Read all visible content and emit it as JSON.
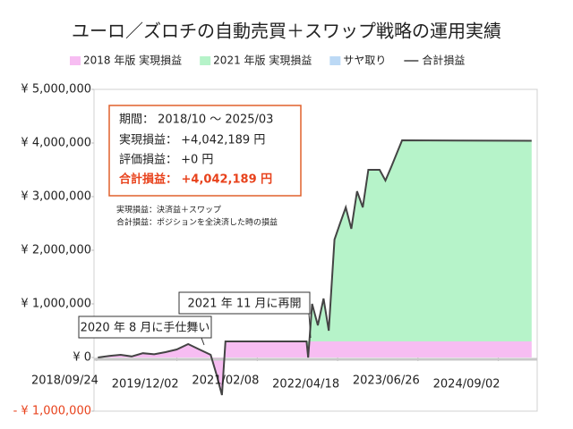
{
  "chart_data": {
    "type": "stacked_area",
    "title": "ユーロ／ズロチの自動売買＋スワップ戦略の運用実績",
    "x": [
      "2018/10/01",
      "2018/12/01",
      "2019/02/01",
      "2019/04/01",
      "2019/06/01",
      "2019/08/01",
      "2019/10/01",
      "2019/12/01",
      "2020/02/01",
      "2020/04/01",
      "2020/06/01",
      "2020/07/01",
      "2020/08/01",
      "2020/08/20",
      "2021/11/01",
      "2021/11/10",
      "2021/12/01",
      "2022/01/01",
      "2022/02/01",
      "2022/03/01",
      "2022/04/01",
      "2022/05/01",
      "2022/06/01",
      "2022/07/01",
      "2022/08/01",
      "2022/09/01",
      "2022/10/01",
      "2022/12/01",
      "2023/01/01",
      "2023/02/01",
      "2023/04/01",
      "2025/03/01"
    ],
    "series": [
      {
        "name": "2018 年版 実現損益",
        "color": "#f7bdf2",
        "values": [
          0,
          30000,
          50000,
          20000,
          80000,
          60000,
          100000,
          150000,
          250000,
          150000,
          50000,
          -300000,
          -700000,
          300000,
          300000,
          300000,
          300000,
          300000,
          300000,
          300000,
          300000,
          300000,
          300000,
          300000,
          300000,
          300000,
          300000,
          300000,
          300000,
          300000,
          300000,
          300000
        ]
      },
      {
        "name": "2021 年版 実現損益",
        "color": "#b6f3c9",
        "values": [
          0,
          0,
          0,
          0,
          0,
          0,
          0,
          0,
          0,
          0,
          0,
          0,
          0,
          0,
          0,
          -300000,
          700000,
          300000,
          800000,
          200000,
          1900000,
          2200000,
          2500000,
          2100000,
          2800000,
          2500000,
          3200000,
          3200000,
          3000000,
          3250000,
          3750000,
          3742189
        ]
      },
      {
        "name": "サヤ取り",
        "color": "#bcd9f5",
        "values": [
          0,
          0,
          0,
          0,
          0,
          0,
          0,
          0,
          0,
          0,
          0,
          0,
          0,
          0,
          0,
          0,
          0,
          0,
          0,
          0,
          0,
          0,
          0,
          0,
          0,
          0,
          0,
          0,
          0,
          0,
          0,
          0
        ]
      }
    ],
    "line_series": {
      "name": "合計損益",
      "color": "#444444",
      "values": [
        0,
        30000,
        50000,
        20000,
        80000,
        60000,
        100000,
        150000,
        250000,
        150000,
        50000,
        -300000,
        -700000,
        300000,
        300000,
        0,
        1000000,
        600000,
        1100000,
        500000,
        2200000,
        2500000,
        2800000,
        2400000,
        3100000,
        2800000,
        3500000,
        3500000,
        3300000,
        3550000,
        4050000,
        4042189
      ]
    },
    "xlim": [
      "2018/09/10",
      "2025/03/31"
    ],
    "xticks": [
      "2018/09/24",
      "2019/12/02",
      "2021/02/08",
      "2022/04/18",
      "2023/06/26",
      "2024/09/02"
    ],
    "ylim": [
      -1000000,
      5000000
    ],
    "yticks": [
      {
        "value": -1000000,
        "label": "- ¥ 1,000,000"
      },
      {
        "value": 0,
        "label": "¥ 0"
      },
      {
        "value": 1000000,
        "label": "¥ 1,000,000"
      },
      {
        "value": 2000000,
        "label": "¥ 2,000,000"
      },
      {
        "value": 3000000,
        "label": "¥ 3,000,000"
      },
      {
        "value": 4000000,
        "label": "¥ 4,000,000"
      },
      {
        "value": 5000000,
        "label": "¥ 5,000,000"
      }
    ],
    "summary": {
      "lines": [
        "期間： 2018/10 ～ 2025/03",
        "実現損益： +4,042,189 円",
        "評価損益： +0 円"
      ],
      "total": "合計損益： +4,042,189 円",
      "notes": [
        "実現損益：決済益＋スワップ",
        "合計損益：ポジションを全決済した時の損益"
      ]
    },
    "annotations": [
      "2021 年 11 月に再開",
      "2020 年 8 月に手仕舞い"
    ]
  }
}
